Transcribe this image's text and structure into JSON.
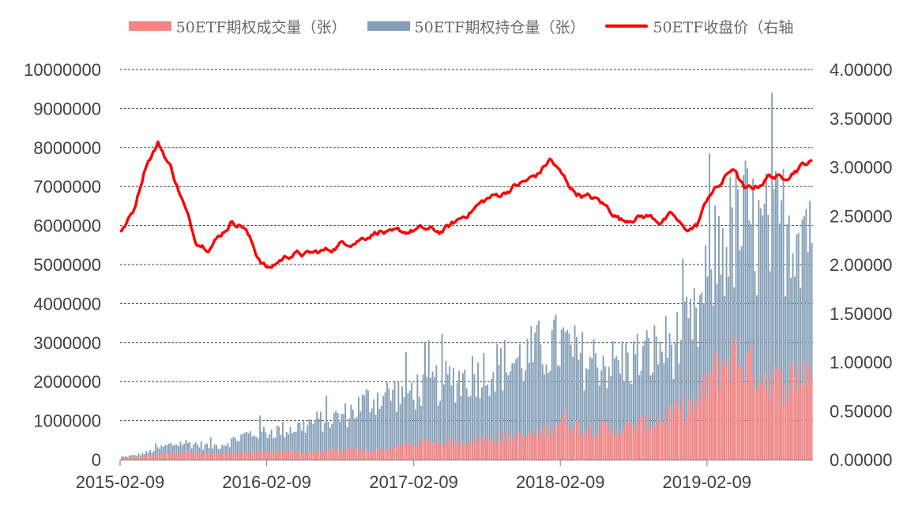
{
  "colors": {
    "volume": "#f88383",
    "open_interest": "#849fb7",
    "price": "#ff0000",
    "grid": "#444444",
    "axis": "#8c8c8c"
  },
  "chart_data": {
    "type": "bar",
    "title": "",
    "xlabel": "",
    "ylabel": "",
    "legend_position": "top",
    "grid": true,
    "grid_style": "dashed-horizontal",
    "ylim": [
      0,
      10000000
    ],
    "y2lim": [
      0.0,
      4.0
    ],
    "yticks": [
      0,
      1000000,
      2000000,
      3000000,
      4000000,
      5000000,
      6000000,
      7000000,
      8000000,
      9000000,
      10000000
    ],
    "ytick_labels": [
      "0",
      "1000000",
      "2000000",
      "3000000",
      "4000000",
      "5000000",
      "6000000",
      "7000000",
      "8000000",
      "9000000",
      "10000000"
    ],
    "y2ticks": [
      0,
      0.5,
      1.0,
      1.5,
      2.0,
      2.5,
      3.0,
      3.5,
      4.0
    ],
    "y2tick_labels": [
      "0.00000",
      "0.50000",
      "1.00000",
      "1.50000",
      "2.00000",
      "2.50000",
      "3.00000",
      "3.50000",
      "4.00000"
    ],
    "xlim": [
      "2015-02-09",
      "2019-10-31"
    ],
    "xtick_labels": [
      "2015-02-09",
      "2016-02-09",
      "2017-02-09",
      "2018-02-09",
      "2019-02-09"
    ],
    "x": [
      "2015-02",
      "2015-03",
      "2015-04",
      "2015-05",
      "2015-06",
      "2015-07",
      "2015-08",
      "2015-09",
      "2015-10",
      "2015-11",
      "2015-12",
      "2016-01",
      "2016-02",
      "2016-03",
      "2016-04",
      "2016-05",
      "2016-06",
      "2016-07",
      "2016-08",
      "2016-09",
      "2016-10",
      "2016-11",
      "2016-12",
      "2017-01",
      "2017-02",
      "2017-03",
      "2017-04",
      "2017-05",
      "2017-06",
      "2017-07",
      "2017-08",
      "2017-09",
      "2017-10",
      "2017-11",
      "2017-12",
      "2018-01",
      "2018-02",
      "2018-03",
      "2018-04",
      "2018-05",
      "2018-06",
      "2018-07",
      "2018-08",
      "2018-09",
      "2018-10",
      "2018-11",
      "2018-12",
      "2019-01",
      "2019-02",
      "2019-03",
      "2019-04",
      "2019-05",
      "2019-06",
      "2019-07",
      "2019-08",
      "2019-09",
      "2019-10"
    ],
    "series": [
      {
        "name": "50ETF期权成交量（张）",
        "type": "bar",
        "axis": "left",
        "values": [
          30000,
          60000,
          100000,
          150000,
          180000,
          200000,
          170000,
          150000,
          140000,
          160000,
          180000,
          200000,
          220000,
          200000,
          190000,
          200000,
          210000,
          220000,
          230000,
          250000,
          240000,
          250000,
          300000,
          380000,
          420000,
          480000,
          460000,
          450000,
          480000,
          520000,
          560000,
          600000,
          580000,
          620000,
          680000,
          850000,
          1100000,
          900000,
          800000,
          850000,
          750000,
          820000,
          900000,
          950000,
          1050000,
          1250000,
          1350000,
          1450000,
          2200000,
          2500000,
          2800000,
          2500000,
          2300000,
          2100000,
          2000000,
          2200000,
          2400000
        ]
      },
      {
        "name": "50ETF期权持仓量（张）",
        "type": "bar",
        "axis": "left",
        "values": [
          80000,
          120000,
          200000,
          320000,
          430000,
          480000,
          450000,
          380000,
          420000,
          550000,
          700000,
          780000,
          800000,
          850000,
          900000,
          1000000,
          1100000,
          1150000,
          1250000,
          1450000,
          1700000,
          1800000,
          1900000,
          1900000,
          2000000,
          2100000,
          2200000,
          2300000,
          2350000,
          2500000,
          2600000,
          2700000,
          2800000,
          2900000,
          3100000,
          3200000,
          3300000,
          3000000,
          2800000,
          2900000,
          2700000,
          2800000,
          2900000,
          3000000,
          3200000,
          3300000,
          3600000,
          3900000,
          5500000,
          6200000,
          6500000,
          6800000,
          6300000,
          6500000,
          6700000,
          6900000,
          7000000
        ]
      },
      {
        "name": "50ETF收盘价（右轴",
        "type": "line",
        "axis": "right",
        "values": [
          2.35,
          2.55,
          3.05,
          3.25,
          3.0,
          2.65,
          2.25,
          2.2,
          2.3,
          2.45,
          2.4,
          2.1,
          1.95,
          2.05,
          2.12,
          2.1,
          2.12,
          2.15,
          2.22,
          2.25,
          2.3,
          2.36,
          2.3,
          2.32,
          2.36,
          2.35,
          2.33,
          2.4,
          2.5,
          2.6,
          2.68,
          2.72,
          2.8,
          2.85,
          2.92,
          3.08,
          2.9,
          2.75,
          2.7,
          2.65,
          2.55,
          2.45,
          2.5,
          2.5,
          2.45,
          2.5,
          2.35,
          2.4,
          2.72,
          2.82,
          3.0,
          2.75,
          2.8,
          2.92,
          2.88,
          2.98,
          3.05
        ]
      }
    ]
  }
}
